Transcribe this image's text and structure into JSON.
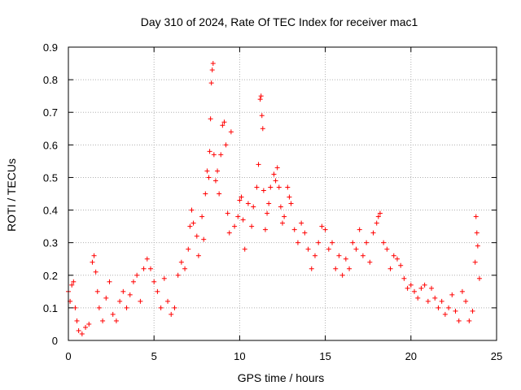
{
  "chart_data": {
    "type": "scatter",
    "title": "Day 310 of 2024, Rate Of TEC Index for receiver mac1",
    "xlabel": "GPS time / hours",
    "ylabel": "ROTI / TECUs",
    "xlim": [
      0,
      25
    ],
    "ylim": [
      0,
      0.9
    ],
    "x_ticks": [
      0,
      5,
      10,
      15,
      20,
      25
    ],
    "y_ticks": [
      0,
      0.1,
      0.2,
      0.3,
      0.4,
      0.5,
      0.6,
      0.7,
      0.8,
      0.9
    ],
    "x_tick_labels": [
      "0",
      "5",
      "10",
      "15",
      "20",
      "25"
    ],
    "y_tick_labels": [
      "0",
      "0.1",
      "0.2",
      "0.3",
      "0.4",
      "0.5",
      "0.6",
      "0.7",
      "0.8",
      "0.9"
    ],
    "grid": true,
    "marker": "+",
    "color": "#ff0000",
    "series": [
      {
        "name": "ROTI",
        "points": [
          [
            0.0,
            0.15
          ],
          [
            0.1,
            0.12
          ],
          [
            0.2,
            0.17
          ],
          [
            0.3,
            0.18
          ],
          [
            0.4,
            0.1
          ],
          [
            0.5,
            0.06
          ],
          [
            0.6,
            0.03
          ],
          [
            0.8,
            0.02
          ],
          [
            1.0,
            0.04
          ],
          [
            1.2,
            0.05
          ],
          [
            1.4,
            0.24
          ],
          [
            1.5,
            0.26
          ],
          [
            1.6,
            0.21
          ],
          [
            1.7,
            0.15
          ],
          [
            1.8,
            0.1
          ],
          [
            2.0,
            0.06
          ],
          [
            2.2,
            0.13
          ],
          [
            2.4,
            0.18
          ],
          [
            2.6,
            0.08
          ],
          [
            2.8,
            0.06
          ],
          [
            3.0,
            0.12
          ],
          [
            3.2,
            0.15
          ],
          [
            3.4,
            0.1
          ],
          [
            3.6,
            0.14
          ],
          [
            3.8,
            0.18
          ],
          [
            4.0,
            0.2
          ],
          [
            4.2,
            0.12
          ],
          [
            4.4,
            0.22
          ],
          [
            4.6,
            0.25
          ],
          [
            4.8,
            0.22
          ],
          [
            5.0,
            0.18
          ],
          [
            5.2,
            0.15
          ],
          [
            5.4,
            0.1
          ],
          [
            5.6,
            0.19
          ],
          [
            5.8,
            0.12
          ],
          [
            6.0,
            0.08
          ],
          [
            6.2,
            0.1
          ],
          [
            6.4,
            0.2
          ],
          [
            6.6,
            0.24
          ],
          [
            6.8,
            0.22
          ],
          [
            7.0,
            0.28
          ],
          [
            7.1,
            0.35
          ],
          [
            7.2,
            0.4
          ],
          [
            7.3,
            0.36
          ],
          [
            7.5,
            0.32
          ],
          [
            7.6,
            0.26
          ],
          [
            7.8,
            0.38
          ],
          [
            7.9,
            0.31
          ],
          [
            8.0,
            0.45
          ],
          [
            8.1,
            0.52
          ],
          [
            8.2,
            0.5
          ],
          [
            8.25,
            0.58
          ],
          [
            8.3,
            0.68
          ],
          [
            8.35,
            0.79
          ],
          [
            8.4,
            0.83
          ],
          [
            8.45,
            0.85
          ],
          [
            8.5,
            0.57
          ],
          [
            8.6,
            0.49
          ],
          [
            8.7,
            0.52
          ],
          [
            8.8,
            0.45
          ],
          [
            8.9,
            0.57
          ],
          [
            9.0,
            0.66
          ],
          [
            9.1,
            0.67
          ],
          [
            9.2,
            0.6
          ],
          [
            9.3,
            0.39
          ],
          [
            9.4,
            0.33
          ],
          [
            9.5,
            0.64
          ],
          [
            9.7,
            0.35
          ],
          [
            9.9,
            0.38
          ],
          [
            10.0,
            0.43
          ],
          [
            10.1,
            0.44
          ],
          [
            10.2,
            0.37
          ],
          [
            10.3,
            0.28
          ],
          [
            10.5,
            0.42
          ],
          [
            10.7,
            0.35
          ],
          [
            10.8,
            0.41
          ],
          [
            11.0,
            0.47
          ],
          [
            11.1,
            0.54
          ],
          [
            11.2,
            0.74
          ],
          [
            11.25,
            0.75
          ],
          [
            11.3,
            0.69
          ],
          [
            11.35,
            0.65
          ],
          [
            11.4,
            0.46
          ],
          [
            11.5,
            0.34
          ],
          [
            11.6,
            0.39
          ],
          [
            11.7,
            0.42
          ],
          [
            11.8,
            0.47
          ],
          [
            12.0,
            0.51
          ],
          [
            12.1,
            0.49
          ],
          [
            12.2,
            0.53
          ],
          [
            12.3,
            0.47
          ],
          [
            12.4,
            0.41
          ],
          [
            12.5,
            0.36
          ],
          [
            12.6,
            0.38
          ],
          [
            12.8,
            0.47
          ],
          [
            12.9,
            0.44
          ],
          [
            13.0,
            0.42
          ],
          [
            13.2,
            0.34
          ],
          [
            13.4,
            0.3
          ],
          [
            13.6,
            0.36
          ],
          [
            13.8,
            0.33
          ],
          [
            14.0,
            0.28
          ],
          [
            14.2,
            0.22
          ],
          [
            14.4,
            0.26
          ],
          [
            14.6,
            0.3
          ],
          [
            14.8,
            0.35
          ],
          [
            15.0,
            0.34
          ],
          [
            15.2,
            0.28
          ],
          [
            15.4,
            0.3
          ],
          [
            15.6,
            0.22
          ],
          [
            15.8,
            0.26
          ],
          [
            16.0,
            0.2
          ],
          [
            16.2,
            0.25
          ],
          [
            16.4,
            0.22
          ],
          [
            16.6,
            0.3
          ],
          [
            16.8,
            0.28
          ],
          [
            17.0,
            0.34
          ],
          [
            17.2,
            0.26
          ],
          [
            17.4,
            0.3
          ],
          [
            17.6,
            0.24
          ],
          [
            17.8,
            0.33
          ],
          [
            18.0,
            0.36
          ],
          [
            18.1,
            0.38
          ],
          [
            18.2,
            0.39
          ],
          [
            18.4,
            0.3
          ],
          [
            18.6,
            0.28
          ],
          [
            18.8,
            0.22
          ],
          [
            19.0,
            0.26
          ],
          [
            19.2,
            0.25
          ],
          [
            19.4,
            0.23
          ],
          [
            19.6,
            0.19
          ],
          [
            19.8,
            0.16
          ],
          [
            20.0,
            0.17
          ],
          [
            20.2,
            0.15
          ],
          [
            20.4,
            0.13
          ],
          [
            20.6,
            0.16
          ],
          [
            20.8,
            0.17
          ],
          [
            21.0,
            0.12
          ],
          [
            21.2,
            0.16
          ],
          [
            21.4,
            0.13
          ],
          [
            21.6,
            0.1
          ],
          [
            21.8,
            0.12
          ],
          [
            22.0,
            0.08
          ],
          [
            22.2,
            0.1
          ],
          [
            22.4,
            0.14
          ],
          [
            22.6,
            0.09
          ],
          [
            22.8,
            0.06
          ],
          [
            23.0,
            0.15
          ],
          [
            23.2,
            0.12
          ],
          [
            23.4,
            0.06
          ],
          [
            23.6,
            0.09
          ],
          [
            23.75,
            0.24
          ],
          [
            23.8,
            0.38
          ],
          [
            23.85,
            0.33
          ],
          [
            23.9,
            0.29
          ],
          [
            24.0,
            0.19
          ]
        ]
      }
    ]
  }
}
